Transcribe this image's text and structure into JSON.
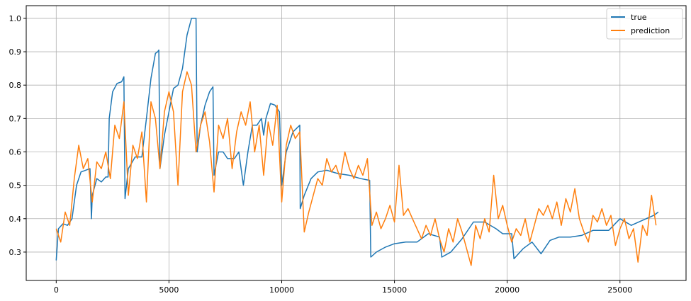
{
  "chart_data": {
    "type": "line",
    "title": "",
    "xlabel": "",
    "ylabel": "",
    "xlim": [
      -1330,
      27930
    ],
    "ylim": [
      0.215,
      1.038
    ],
    "xticks": [
      0,
      5000,
      10000,
      15000,
      20000,
      25000
    ],
    "xtick_labels": [
      "0",
      "5000",
      "10000",
      "15000",
      "20000",
      "25000"
    ],
    "yticks": [
      0.3,
      0.4,
      0.5,
      0.6,
      0.7,
      0.8,
      0.9,
      1.0
    ],
    "ytick_labels": [
      "0.3",
      "0.4",
      "0.5",
      "0.6",
      "0.7",
      "0.8",
      "0.9",
      "1.0"
    ],
    "grid": true,
    "legend_position": "top-right",
    "series": [
      {
        "name": "true",
        "color": "#1f77b4",
        "points": [
          [
            0,
            0.275
          ],
          [
            100,
            0.37
          ],
          [
            300,
            0.385
          ],
          [
            500,
            0.38
          ],
          [
            700,
            0.4
          ],
          [
            900,
            0.5
          ],
          [
            1100,
            0.54
          ],
          [
            1300,
            0.545
          ],
          [
            1500,
            0.55
          ],
          [
            1560,
            0.4
          ],
          [
            1600,
            0.47
          ],
          [
            1800,
            0.52
          ],
          [
            2000,
            0.51
          ],
          [
            2200,
            0.525
          ],
          [
            2300,
            0.525
          ],
          [
            2350,
            0.7
          ],
          [
            2500,
            0.78
          ],
          [
            2700,
            0.805
          ],
          [
            2900,
            0.81
          ],
          [
            3000,
            0.825
          ],
          [
            3050,
            0.46
          ],
          [
            3200,
            0.55
          ],
          [
            3500,
            0.585
          ],
          [
            3800,
            0.585
          ],
          [
            4000,
            0.7
          ],
          [
            4200,
            0.82
          ],
          [
            4400,
            0.895
          ],
          [
            4500,
            0.9
          ],
          [
            4550,
            0.905
          ],
          [
            4600,
            0.55
          ],
          [
            4800,
            0.65
          ],
          [
            5000,
            0.72
          ],
          [
            5200,
            0.79
          ],
          [
            5400,
            0.8
          ],
          [
            5600,
            0.85
          ],
          [
            5800,
            0.95
          ],
          [
            6000,
            1.0
          ],
          [
            6200,
            1.0
          ],
          [
            6250,
            0.6
          ],
          [
            6400,
            0.68
          ],
          [
            6600,
            0.74
          ],
          [
            6800,
            0.78
          ],
          [
            6950,
            0.795
          ],
          [
            7000,
            0.53
          ],
          [
            7200,
            0.6
          ],
          [
            7400,
            0.6
          ],
          [
            7600,
            0.58
          ],
          [
            7900,
            0.58
          ],
          [
            8100,
            0.6
          ],
          [
            8300,
            0.5
          ],
          [
            8500,
            0.6
          ],
          [
            8700,
            0.68
          ],
          [
            8900,
            0.68
          ],
          [
            9100,
            0.7
          ],
          [
            9200,
            0.65
          ],
          [
            9300,
            0.7
          ],
          [
            9500,
            0.745
          ],
          [
            9700,
            0.74
          ],
          [
            9900,
            0.72
          ],
          [
            10000,
            0.5
          ],
          [
            10200,
            0.6
          ],
          [
            10500,
            0.66
          ],
          [
            10800,
            0.68
          ],
          [
            10820,
            0.43
          ],
          [
            11000,
            0.47
          ],
          [
            11300,
            0.52
          ],
          [
            11600,
            0.54
          ],
          [
            12000,
            0.545
          ],
          [
            12500,
            0.535
          ],
          [
            13000,
            0.53
          ],
          [
            13500,
            0.52
          ],
          [
            13900,
            0.515
          ],
          [
            13950,
            0.285
          ],
          [
            14200,
            0.3
          ],
          [
            14600,
            0.315
          ],
          [
            15000,
            0.325
          ],
          [
            15500,
            0.33
          ],
          [
            16000,
            0.33
          ],
          [
            16500,
            0.355
          ],
          [
            17000,
            0.345
          ],
          [
            17100,
            0.285
          ],
          [
            17500,
            0.3
          ],
          [
            18000,
            0.34
          ],
          [
            18500,
            0.39
          ],
          [
            19000,
            0.39
          ],
          [
            19500,
            0.37
          ],
          [
            19800,
            0.355
          ],
          [
            20200,
            0.355
          ],
          [
            20300,
            0.28
          ],
          [
            20700,
            0.31
          ],
          [
            21100,
            0.33
          ],
          [
            21500,
            0.295
          ],
          [
            21900,
            0.335
          ],
          [
            22300,
            0.345
          ],
          [
            22800,
            0.345
          ],
          [
            23300,
            0.35
          ],
          [
            23800,
            0.365
          ],
          [
            24500,
            0.365
          ],
          [
            25000,
            0.4
          ],
          [
            25500,
            0.38
          ],
          [
            26000,
            0.395
          ],
          [
            26500,
            0.41
          ],
          [
            26700,
            0.42
          ]
        ]
      },
      {
        "name": "prediction",
        "color": "#ff7f0e",
        "points": [
          [
            0,
            0.37
          ],
          [
            200,
            0.33
          ],
          [
            400,
            0.42
          ],
          [
            600,
            0.38
          ],
          [
            800,
            0.52
          ],
          [
            1000,
            0.62
          ],
          [
            1200,
            0.55
          ],
          [
            1400,
            0.58
          ],
          [
            1600,
            0.45
          ],
          [
            1800,
            0.57
          ],
          [
            2000,
            0.55
          ],
          [
            2200,
            0.6
          ],
          [
            2400,
            0.52
          ],
          [
            2600,
            0.68
          ],
          [
            2800,
            0.64
          ],
          [
            3000,
            0.75
          ],
          [
            3200,
            0.47
          ],
          [
            3400,
            0.62
          ],
          [
            3600,
            0.58
          ],
          [
            3800,
            0.66
          ],
          [
            4000,
            0.45
          ],
          [
            4200,
            0.75
          ],
          [
            4400,
            0.7
          ],
          [
            4600,
            0.55
          ],
          [
            4800,
            0.72
          ],
          [
            5000,
            0.78
          ],
          [
            5200,
            0.72
          ],
          [
            5400,
            0.5
          ],
          [
            5600,
            0.78
          ],
          [
            5800,
            0.84
          ],
          [
            6000,
            0.8
          ],
          [
            6200,
            0.6
          ],
          [
            6400,
            0.68
          ],
          [
            6600,
            0.72
          ],
          [
            6800,
            0.63
          ],
          [
            7000,
            0.48
          ],
          [
            7200,
            0.68
          ],
          [
            7400,
            0.64
          ],
          [
            7600,
            0.7
          ],
          [
            7800,
            0.55
          ],
          [
            8000,
            0.66
          ],
          [
            8200,
            0.72
          ],
          [
            8400,
            0.68
          ],
          [
            8600,
            0.75
          ],
          [
            8800,
            0.6
          ],
          [
            9000,
            0.68
          ],
          [
            9200,
            0.53
          ],
          [
            9400,
            0.69
          ],
          [
            9600,
            0.62
          ],
          [
            9800,
            0.74
          ],
          [
            10000,
            0.45
          ],
          [
            10200,
            0.62
          ],
          [
            10400,
            0.68
          ],
          [
            10600,
            0.64
          ],
          [
            10800,
            0.66
          ],
          [
            11000,
            0.36
          ],
          [
            11200,
            0.42
          ],
          [
            11400,
            0.47
          ],
          [
            11600,
            0.52
          ],
          [
            11800,
            0.5
          ],
          [
            12000,
            0.58
          ],
          [
            12200,
            0.54
          ],
          [
            12400,
            0.56
          ],
          [
            12600,
            0.52
          ],
          [
            12800,
            0.6
          ],
          [
            13000,
            0.55
          ],
          [
            13200,
            0.52
          ],
          [
            13400,
            0.56
          ],
          [
            13600,
            0.53
          ],
          [
            13800,
            0.58
          ],
          [
            14000,
            0.38
          ],
          [
            14200,
            0.42
          ],
          [
            14400,
            0.37
          ],
          [
            14600,
            0.4
          ],
          [
            14800,
            0.44
          ],
          [
            15000,
            0.39
          ],
          [
            15200,
            0.56
          ],
          [
            15400,
            0.41
          ],
          [
            15600,
            0.43
          ],
          [
            15800,
            0.4
          ],
          [
            16000,
            0.37
          ],
          [
            16200,
            0.34
          ],
          [
            16400,
            0.38
          ],
          [
            16600,
            0.35
          ],
          [
            16800,
            0.4
          ],
          [
            17000,
            0.34
          ],
          [
            17200,
            0.3
          ],
          [
            17400,
            0.37
          ],
          [
            17600,
            0.33
          ],
          [
            17800,
            0.4
          ],
          [
            18000,
            0.36
          ],
          [
            18200,
            0.31
          ],
          [
            18400,
            0.26
          ],
          [
            18600,
            0.38
          ],
          [
            18800,
            0.34
          ],
          [
            19000,
            0.4
          ],
          [
            19200,
            0.36
          ],
          [
            19400,
            0.53
          ],
          [
            19600,
            0.4
          ],
          [
            19800,
            0.44
          ],
          [
            20000,
            0.38
          ],
          [
            20200,
            0.33
          ],
          [
            20400,
            0.37
          ],
          [
            20600,
            0.35
          ],
          [
            20800,
            0.4
          ],
          [
            21000,
            0.33
          ],
          [
            21200,
            0.38
          ],
          [
            21400,
            0.43
          ],
          [
            21600,
            0.41
          ],
          [
            21800,
            0.44
          ],
          [
            22000,
            0.4
          ],
          [
            22200,
            0.45
          ],
          [
            22400,
            0.38
          ],
          [
            22600,
            0.46
          ],
          [
            22800,
            0.42
          ],
          [
            23000,
            0.49
          ],
          [
            23200,
            0.4
          ],
          [
            23400,
            0.36
          ],
          [
            23600,
            0.33
          ],
          [
            23800,
            0.41
          ],
          [
            24000,
            0.39
          ],
          [
            24200,
            0.43
          ],
          [
            24400,
            0.38
          ],
          [
            24600,
            0.41
          ],
          [
            24800,
            0.32
          ],
          [
            25000,
            0.37
          ],
          [
            25200,
            0.4
          ],
          [
            25400,
            0.34
          ],
          [
            25600,
            0.37
          ],
          [
            25800,
            0.27
          ],
          [
            26000,
            0.38
          ],
          [
            26200,
            0.35
          ],
          [
            26400,
            0.47
          ],
          [
            26600,
            0.38
          ]
        ]
      }
    ]
  }
}
